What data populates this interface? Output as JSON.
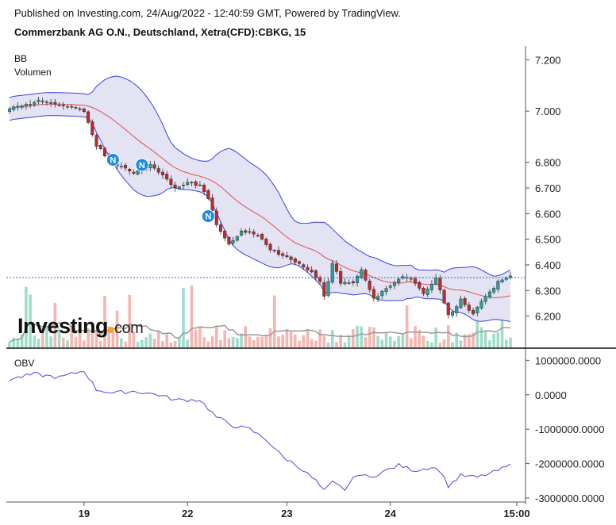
{
  "header": {
    "published": "Published on Investing.com, 24/Aug/2022 - 12:40:59 GMT, Powered by TradingView.",
    "symbol": "Commerzbank AG O.N., Deutschland, Xetra(CFD):CBKG, 15"
  },
  "indicators": {
    "bb_label": "BB",
    "volume_label": "Volumen",
    "obv_label": "OBV"
  },
  "logo": {
    "main": "Investing",
    "suffix": "com"
  },
  "colors": {
    "up": "#26a69a",
    "down": "#c62828",
    "band_line": "#3f3fe0",
    "band_fill": "#e3e3f3",
    "basis": "#e05050",
    "obv_line": "#4a4ae0",
    "volume_up": "#9fdcca",
    "volume_down": "#f5b5b0",
    "price_line": "#3b5bdb",
    "news_marker": "#1e88e5"
  },
  "chart_data": [
    {
      "type": "candlestick",
      "panel": "price",
      "ylim": [
        6.14,
        7.22
      ],
      "yticks": [
        "7.200",
        "7.000",
        "6.800",
        "6.700",
        "6.600",
        "6.500",
        "6.400",
        "6.300",
        "6.200"
      ],
      "ytick_values": [
        7.2,
        7.0,
        6.8,
        6.7,
        6.6,
        6.5,
        6.4,
        6.3,
        6.2
      ],
      "xticks": [
        "19",
        "22",
        "23",
        "24",
        "15:00"
      ],
      "current_price": 6.35,
      "news_markers": [
        "N",
        "N",
        "N"
      ],
      "close_keypoints": [
        {
          "i": 0,
          "v": 7.01
        },
        {
          "i": 8,
          "v": 7.04
        },
        {
          "i": 14,
          "v": 7.02
        },
        {
          "i": 18,
          "v": 7.0
        },
        {
          "i": 21,
          "v": 6.86
        },
        {
          "i": 25,
          "v": 6.8
        },
        {
          "i": 30,
          "v": 6.76
        },
        {
          "i": 34,
          "v": 6.79
        },
        {
          "i": 37,
          "v": 6.75
        },
        {
          "i": 40,
          "v": 6.7
        },
        {
          "i": 44,
          "v": 6.72
        },
        {
          "i": 46,
          "v": 6.71
        },
        {
          "i": 48,
          "v": 6.66
        },
        {
          "i": 50,
          "v": 6.56
        },
        {
          "i": 53,
          "v": 6.48
        },
        {
          "i": 56,
          "v": 6.53
        },
        {
          "i": 60,
          "v": 6.52
        },
        {
          "i": 63,
          "v": 6.46
        },
        {
          "i": 67,
          "v": 6.43
        },
        {
          "i": 70,
          "v": 6.4
        },
        {
          "i": 72,
          "v": 6.38
        },
        {
          "i": 75,
          "v": 6.34
        },
        {
          "i": 76,
          "v": 6.27
        },
        {
          "i": 78,
          "v": 6.41
        },
        {
          "i": 80,
          "v": 6.33
        },
        {
          "i": 83,
          "v": 6.33
        },
        {
          "i": 85,
          "v": 6.38
        },
        {
          "i": 88,
          "v": 6.27
        },
        {
          "i": 92,
          "v": 6.32
        },
        {
          "i": 95,
          "v": 6.36
        },
        {
          "i": 98,
          "v": 6.33
        },
        {
          "i": 100,
          "v": 6.29
        },
        {
          "i": 103,
          "v": 6.35
        },
        {
          "i": 106,
          "v": 6.2
        },
        {
          "i": 109,
          "v": 6.26
        },
        {
          "i": 112,
          "v": 6.21
        },
        {
          "i": 115,
          "v": 6.28
        },
        {
          "i": 118,
          "v": 6.33
        },
        {
          "i": 121,
          "v": 6.36
        }
      ]
    },
    {
      "type": "line",
      "panel": "obv",
      "name": "OBV",
      "ylim": [
        -3000000,
        1100000
      ],
      "yticks": [
        "1000000.0000",
        "0.0000",
        "-1000000.0000",
        "-2000000.0000",
        "-3000000.0000"
      ],
      "ytick_values": [
        1000000,
        0,
        -1000000,
        -2000000,
        -3000000
      ],
      "keypoints": [
        {
          "i": 0,
          "v": 450000
        },
        {
          "i": 6,
          "v": 600000
        },
        {
          "i": 12,
          "v": 500000
        },
        {
          "i": 18,
          "v": 700000
        },
        {
          "i": 21,
          "v": 150000
        },
        {
          "i": 25,
          "v": 50000
        },
        {
          "i": 30,
          "v": 100000
        },
        {
          "i": 36,
          "v": 0
        },
        {
          "i": 40,
          "v": -150000
        },
        {
          "i": 46,
          "v": -150000
        },
        {
          "i": 50,
          "v": -650000
        },
        {
          "i": 54,
          "v": -900000
        },
        {
          "i": 58,
          "v": -1000000
        },
        {
          "i": 62,
          "v": -1300000
        },
        {
          "i": 66,
          "v": -1800000
        },
        {
          "i": 70,
          "v": -2100000
        },
        {
          "i": 74,
          "v": -2500000
        },
        {
          "i": 76,
          "v": -2800000
        },
        {
          "i": 78,
          "v": -2550000
        },
        {
          "i": 81,
          "v": -2750000
        },
        {
          "i": 84,
          "v": -2300000
        },
        {
          "i": 87,
          "v": -2400000
        },
        {
          "i": 90,
          "v": -2250000
        },
        {
          "i": 94,
          "v": -2050000
        },
        {
          "i": 98,
          "v": -2200000
        },
        {
          "i": 102,
          "v": -2100000
        },
        {
          "i": 104,
          "v": -2200000
        },
        {
          "i": 106,
          "v": -2650000
        },
        {
          "i": 109,
          "v": -2350000
        },
        {
          "i": 113,
          "v": -2400000
        },
        {
          "i": 117,
          "v": -2250000
        },
        {
          "i": 121,
          "v": -2050000
        }
      ]
    }
  ]
}
